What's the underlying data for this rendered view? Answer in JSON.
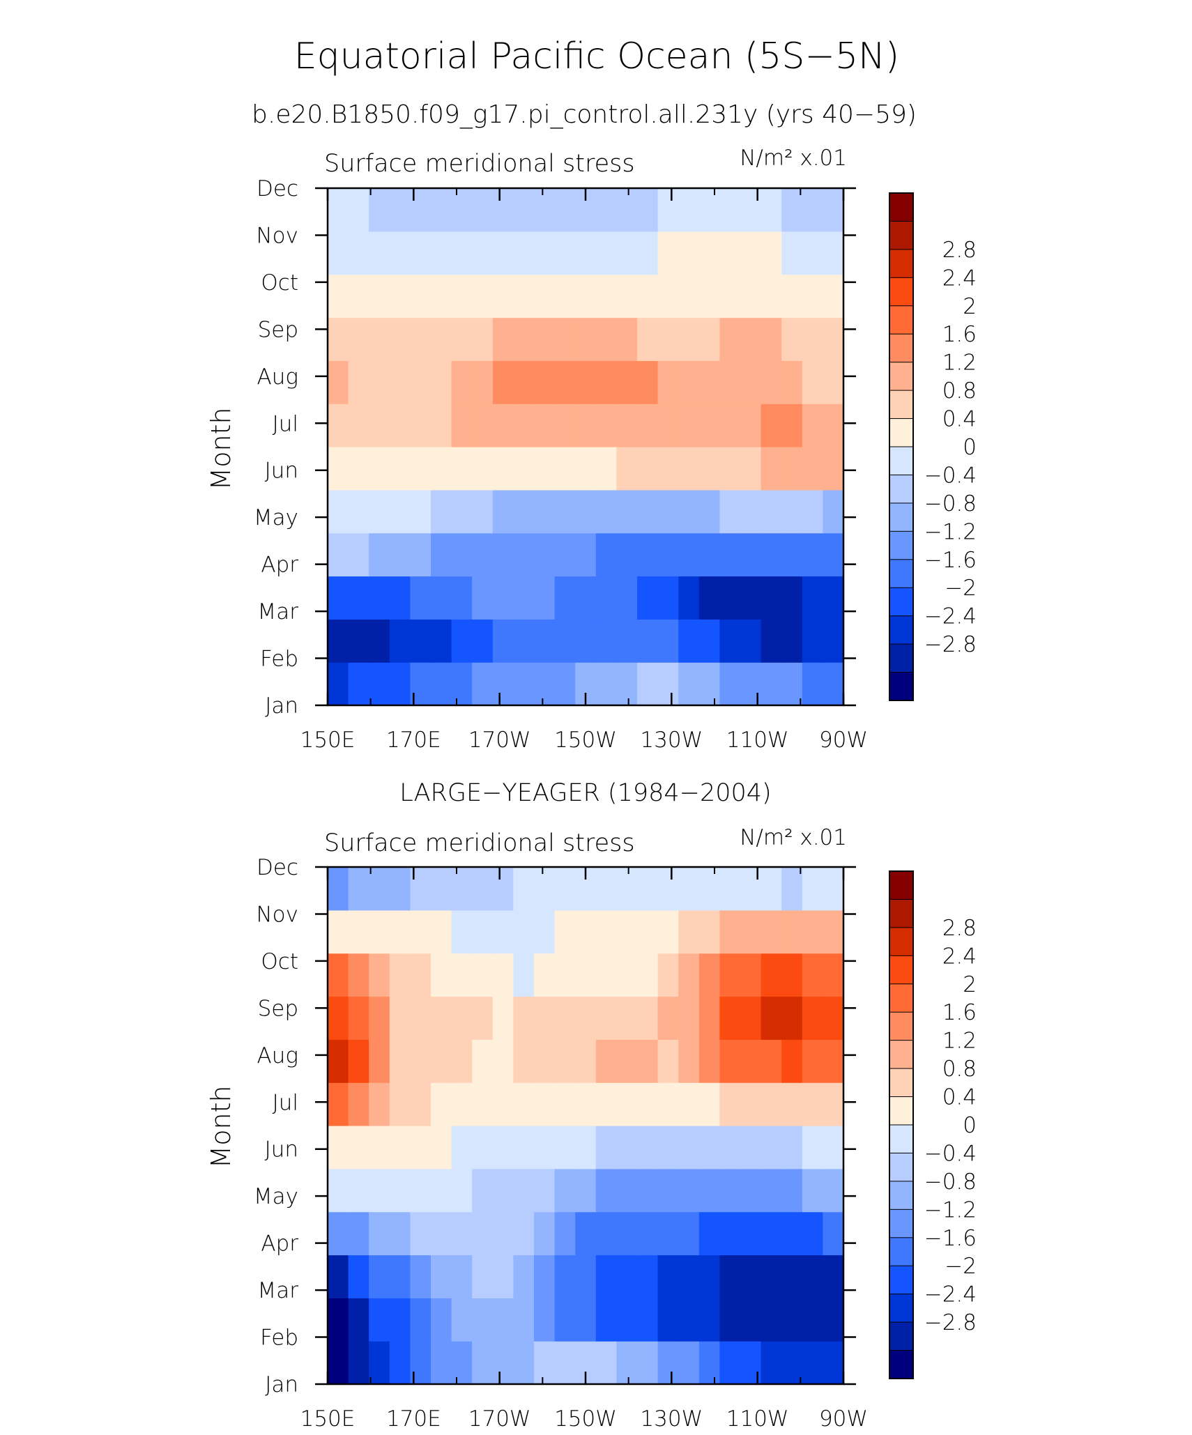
{
  "figure": {
    "title": "Equatorial Pacific Ocean (5S−5N)",
    "subtitle": "b.e20.B1850.f09_g17.pi_control.all.231y (yrs 40−59)"
  },
  "colors": {
    "palette": [
      "#00007f",
      "#0020a8",
      "#0036d6",
      "#1455ff",
      "#3f77ff",
      "#6a97ff",
      "#93b4ff",
      "#b7cdff",
      "#d6e6ff",
      "#fff0dc",
      "#ffd2b8",
      "#ffb18f",
      "#ff8c61",
      "#ff6a35",
      "#fb4b10",
      "#d62d00",
      "#ad1800",
      "#850000"
    ]
  },
  "chart_data": [
    {
      "type": "heatmap",
      "panel_title": "",
      "left_label": "Surface meridional stress",
      "units_label": "N/m² x.01",
      "ylabel": "Month",
      "xlabel": "",
      "x_ticks": [
        "150E",
        "170E",
        "170W",
        "150W",
        "130W",
        "110W",
        "90W"
      ],
      "y_ticks": [
        "Jan",
        "Feb",
        "Mar",
        "Apr",
        "May",
        "Jun",
        "Jul",
        "Aug",
        "Sep",
        "Oct",
        "Nov",
        "Dec"
      ],
      "x_longitudes": [
        150,
        155,
        160,
        165,
        170,
        175,
        180,
        185,
        190,
        195,
        200,
        205,
        210,
        215,
        220,
        225,
        230,
        235,
        240,
        245,
        250,
        255,
        260,
        265,
        270
      ],
      "colorbar_levels": [
        -3.2,
        -2.8,
        -2.4,
        -2,
        -1.6,
        -1.2,
        -0.8,
        -0.4,
        0,
        0.4,
        0.8,
        1.2,
        1.6,
        2,
        2.4,
        2.8,
        3.2
      ],
      "colorbar_labels": [
        "2.8",
        "2.4",
        "2",
        "1.6",
        "1.2",
        "0.8",
        "0.4",
        "0",
        "−0.4",
        "−0.8",
        "−1.2",
        "−1.6",
        "−2",
        "−2.4",
        "−2.8"
      ],
      "values": [
        [
          -2.1,
          -2.0,
          -1.9,
          -1.9,
          -1.6,
          -1.4,
          -1.3,
          -1.2,
          -1.2,
          -1.1,
          -1.1,
          -1.0,
          -0.8,
          -0.6,
          -0.5,
          -0.3,
          -0.3,
          -0.5,
          -0.8,
          -0.9,
          -1.0,
          -1.0,
          -1.2,
          -1.4,
          -1.5
        ],
        [
          -2.7,
          -2.5,
          -2.5,
          -2.4,
          -2.3,
          -2.2,
          -2.0,
          -1.8,
          -1.6,
          -1.4,
          -1.3,
          -1.3,
          -1.3,
          -1.3,
          -1.3,
          -1.4,
          -1.5,
          -1.8,
          -2.0,
          -2.2,
          -2.4,
          -2.5,
          -2.5,
          -2.4,
          -2.2
        ],
        [
          -2.0,
          -1.9,
          -1.8,
          -1.7,
          -1.6,
          -1.5,
          -1.4,
          -1.2,
          -1.0,
          -0.9,
          -1.1,
          -1.3,
          -1.4,
          -1.5,
          -1.6,
          -1.7,
          -1.8,
          -2.2,
          -2.5,
          -2.7,
          -2.8,
          -2.7,
          -2.6,
          -2.4,
          -2.2
        ],
        [
          -0.4,
          -0.4,
          -0.5,
          -0.7,
          -0.8,
          -0.9,
          -1.0,
          -1.1,
          -1.1,
          -1.1,
          -1.2,
          -1.2,
          -1.2,
          -1.3,
          -1.3,
          -1.4,
          -1.4,
          -1.4,
          -1.4,
          -1.4,
          -1.4,
          -1.4,
          -1.4,
          -1.4,
          -1.4
        ],
        [
          0.2,
          0.2,
          0.2,
          0.1,
          0.0,
          -0.1,
          -0.2,
          -0.4,
          -0.5,
          -0.6,
          -0.6,
          -0.6,
          -0.6,
          -0.6,
          -0.6,
          -0.6,
          -0.6,
          -0.6,
          -0.5,
          -0.4,
          -0.3,
          -0.2,
          -0.3,
          -0.4,
          -0.5
        ],
        [
          0.6,
          0.6,
          0.6,
          0.5,
          0.4,
          0.4,
          0.4,
          0.4,
          0.4,
          0.5,
          0.6,
          0.6,
          0.6,
          0.7,
          0.8,
          0.8,
          0.9,
          0.9,
          1.0,
          1.0,
          1.0,
          1.2,
          1.3,
          1.3,
          1.3
        ],
        [
          1.0,
          1.0,
          1.0,
          1.0,
          1.0,
          1.1,
          1.2,
          1.3,
          1.3,
          1.3,
          1.4,
          1.4,
          1.4,
          1.4,
          1.4,
          1.4,
          1.5,
          1.5,
          1.5,
          1.5,
          1.5,
          1.6,
          1.7,
          1.5,
          1.4
        ],
        [
          1.3,
          1.0,
          1.0,
          1.0,
          1.0,
          1.1,
          1.2,
          1.5,
          1.6,
          1.7,
          1.7,
          1.8,
          1.7,
          1.6,
          1.6,
          1.6,
          1.5,
          1.3,
          1.5,
          1.4,
          1.3,
          1.2,
          1.2,
          1.1,
          1.0
        ],
        [
          0.9,
          0.8,
          0.8,
          0.8,
          0.8,
          0.9,
          1.0,
          1.1,
          1.2,
          1.2,
          1.3,
          1.3,
          1.3,
          1.2,
          1.2,
          1.1,
          1.0,
          1.0,
          1.0,
          1.2,
          1.3,
          1.2,
          1.1,
          0.9,
          0.8
        ],
        [
          0.5,
          0.5,
          0.4,
          0.4,
          0.4,
          0.4,
          0.4,
          0.4,
          0.4,
          0.4,
          0.5,
          0.5,
          0.5,
          0.5,
          0.5,
          0.5,
          0.5,
          0.5,
          0.5,
          0.5,
          0.5,
          0.6,
          0.6,
          0.6,
          0.5
        ],
        [
          0.2,
          0.2,
          0.2,
          0.1,
          0.0,
          0.0,
          0.0,
          0.0,
          0.0,
          0.0,
          0.0,
          0.0,
          0.1,
          0.2,
          0.3,
          0.3,
          0.4,
          0.4,
          0.5,
          0.5,
          0.4,
          0.4,
          0.3,
          0.3,
          0.3
        ],
        [
          0.1,
          0.0,
          -0.1,
          -0.1,
          -0.1,
          -0.2,
          -0.2,
          -0.2,
          -0.2,
          -0.2,
          -0.2,
          -0.2,
          -0.2,
          -0.2,
          -0.2,
          -0.1,
          0.1,
          0.2,
          0.2,
          0.2,
          0.1,
          0.1,
          -0.1,
          -0.2,
          -0.2
        ]
      ]
    },
    {
      "type": "heatmap",
      "panel_title": "LARGE−YEAGER (1984−2004)",
      "left_label": "Surface meridional stress",
      "units_label": "N/m² x.01",
      "ylabel": "Month",
      "xlabel": "",
      "x_ticks": [
        "150E",
        "170E",
        "170W",
        "150W",
        "130W",
        "110W",
        "90W"
      ],
      "y_ticks": [
        "Jan",
        "Feb",
        "Mar",
        "Apr",
        "May",
        "Jun",
        "Jul",
        "Aug",
        "Sep",
        "Oct",
        "Nov",
        "Dec"
      ],
      "x_longitudes": [
        150,
        155,
        160,
        165,
        170,
        175,
        180,
        185,
        190,
        195,
        200,
        205,
        210,
        215,
        220,
        225,
        230,
        235,
        240,
        245,
        250,
        255,
        260,
        265,
        270
      ],
      "colorbar_levels": [
        -3.2,
        -2.8,
        -2.4,
        -2,
        -1.6,
        -1.2,
        -0.8,
        -0.4,
        0,
        0.4,
        0.8,
        1.2,
        1.6,
        2,
        2.4,
        2.8,
        3.2
      ],
      "colorbar_labels": [
        "2.8",
        "2.4",
        "2",
        "1.6",
        "1.2",
        "0.8",
        "0.4",
        "0",
        "−0.4",
        "−0.8",
        "−1.2",
        "−1.6",
        "−2",
        "−2.4",
        "−2.8"
      ],
      "values": [
        [
          -3.0,
          -2.8,
          -2.3,
          -1.9,
          -1.5,
          -1.2,
          -1.0,
          -0.8,
          -0.6,
          -0.5,
          -0.4,
          -0.3,
          -0.3,
          -0.4,
          -0.6,
          -0.8,
          -1.0,
          -1.2,
          -1.5,
          -1.8,
          -2.0,
          -2.2,
          -2.3,
          -2.4,
          -2.4
        ],
        [
          -3.0,
          -2.6,
          -2.0,
          -1.7,
          -1.4,
          -1.1,
          -0.8,
          -0.6,
          -0.5,
          -0.6,
          -0.9,
          -1.3,
          -1.5,
          -1.7,
          -1.8,
          -2.0,
          -2.2,
          -2.3,
          -2.4,
          -2.5,
          -2.6,
          -2.7,
          -2.6,
          -2.5,
          -2.5
        ],
        [
          -2.6,
          -2.0,
          -1.6,
          -1.3,
          -1.0,
          -0.8,
          -0.6,
          -0.4,
          -0.3,
          -0.5,
          -0.9,
          -1.4,
          -1.6,
          -1.7,
          -1.8,
          -2.0,
          -2.1,
          -2.3,
          -2.4,
          -2.5,
          -2.6,
          -2.7,
          -2.7,
          -2.6,
          -2.5
        ],
        [
          -1.2,
          -0.9,
          -0.7,
          -0.5,
          -0.3,
          -0.2,
          -0.2,
          -0.2,
          -0.2,
          -0.4,
          -0.8,
          -1.1,
          -1.4,
          -1.5,
          -1.5,
          -1.5,
          -1.6,
          -1.6,
          -1.7,
          -1.8,
          -1.8,
          -1.9,
          -1.8,
          -1.7,
          -1.6
        ],
        [
          0.1,
          0.2,
          0.3,
          0.3,
          0.2,
          0.1,
          0.0,
          -0.2,
          -0.3,
          -0.3,
          -0.4,
          -0.6,
          -0.8,
          -0.9,
          -1.0,
          -1.0,
          -1.0,
          -1.0,
          -1.0,
          -1.0,
          -1.0,
          -1.0,
          -0.9,
          -0.8,
          -0.7
        ],
        [
          0.6,
          0.6,
          0.6,
          0.5,
          0.4,
          0.4,
          0.3,
          0.2,
          0.2,
          0.2,
          0.1,
          0.0,
          0.0,
          -0.1,
          -0.2,
          -0.2,
          -0.2,
          -0.2,
          -0.2,
          -0.2,
          -0.1,
          -0.1,
          -0.1,
          0.0,
          0.1
        ],
        [
          2.2,
          1.8,
          1.2,
          1.0,
          0.8,
          0.7,
          0.6,
          0.5,
          0.5,
          0.5,
          0.5,
          0.5,
          0.5,
          0.5,
          0.5,
          0.5,
          0.5,
          0.6,
          0.7,
          0.8,
          0.9,
          1.0,
          1.1,
          1.1,
          1.1
        ],
        [
          3.0,
          2.6,
          1.6,
          1.1,
          0.8,
          0.8,
          0.8,
          0.7,
          0.7,
          0.8,
          0.9,
          1.0,
          1.1,
          1.4,
          1.3,
          1.2,
          1.1,
          1.3,
          1.6,
          2.0,
          2.2,
          2.3,
          2.4,
          2.3,
          2.1
        ],
        [
          2.6,
          2.2,
          1.6,
          1.0,
          0.9,
          1.0,
          1.0,
          0.8,
          0.7,
          1.0,
          1.0,
          1.0,
          1.0,
          1.1,
          1.0,
          1.0,
          1.2,
          1.5,
          1.9,
          2.4,
          2.6,
          2.8,
          2.9,
          2.7,
          2.4
        ],
        [
          2.0,
          1.8,
          1.4,
          1.0,
          0.8,
          0.7,
          0.6,
          0.5,
          0.4,
          0.3,
          0.4,
          0.6,
          0.7,
          0.7,
          0.6,
          0.6,
          0.8,
          1.2,
          1.6,
          2.0,
          2.2,
          2.4,
          2.4,
          2.2,
          2.0
        ],
        [
          0.4,
          0.5,
          0.5,
          0.5,
          0.4,
          0.4,
          0.3,
          0.2,
          0.1,
          0.1,
          0.2,
          0.4,
          0.5,
          0.5,
          0.5,
          0.5,
          0.6,
          0.8,
          1.0,
          1.2,
          1.3,
          1.4,
          1.5,
          1.5,
          1.4
        ],
        [
          -1.0,
          -0.8,
          -0.7,
          -0.6,
          -0.4,
          -0.3,
          -0.3,
          -0.2,
          -0.1,
          0.0,
          0.1,
          0.1,
          0.1,
          0.1,
          0.1,
          0.2,
          0.2,
          0.2,
          0.2,
          0.2,
          0.2,
          0.0,
          -0.1,
          0.0,
          0.0
        ]
      ]
    }
  ]
}
